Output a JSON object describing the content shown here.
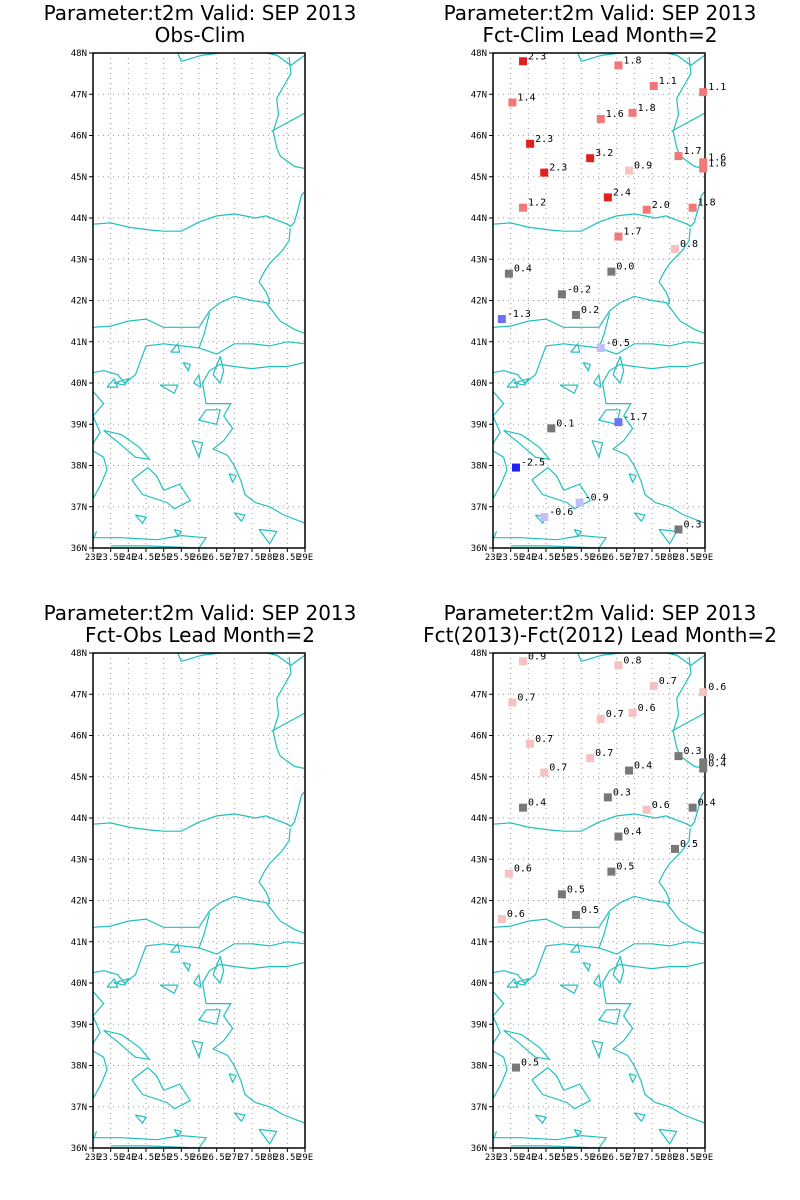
{
  "panels": [
    {
      "title1": "Parameter:t2m Valid: SEP 2013",
      "title2": "Obs-Clim",
      "points": []
    },
    {
      "title1": "Parameter:t2m Valid: SEP 2013",
      "title2": "Fct-Clim Lead Month=2",
      "points": [
        {
          "lon": 23.85,
          "lat": 47.8,
          "v": "2.3",
          "c": "#e02020"
        },
        {
          "lon": 26.55,
          "lat": 47.7,
          "v": "1.8",
          "c": "#f07878"
        },
        {
          "lon": 27.55,
          "lat": 47.2,
          "v": "1.1",
          "c": "#f07878"
        },
        {
          "lon": 28.95,
          "lat": 47.05,
          "v": "1.1",
          "c": "#f07878"
        },
        {
          "lon": 23.55,
          "lat": 46.8,
          "v": "1.4",
          "c": "#f07878"
        },
        {
          "lon": 26.05,
          "lat": 46.4,
          "v": "1.6",
          "c": "#f07878"
        },
        {
          "lon": 26.95,
          "lat": 46.55,
          "v": "1.8",
          "c": "#f07878"
        },
        {
          "lon": 24.05,
          "lat": 45.8,
          "v": "2.3",
          "c": "#e02020"
        },
        {
          "lon": 25.75,
          "lat": 45.45,
          "v": "3.2",
          "c": "#e02020"
        },
        {
          "lon": 28.25,
          "lat": 45.5,
          "v": "1.7",
          "c": "#f07878"
        },
        {
          "lon": 28.95,
          "lat": 45.35,
          "v": "1.6",
          "c": "#f07878"
        },
        {
          "lon": 28.95,
          "lat": 45.2,
          "v": "1.6",
          "c": "#f07878"
        },
        {
          "lon": 24.45,
          "lat": 45.1,
          "v": "2.3",
          "c": "#e02020"
        },
        {
          "lon": 26.85,
          "lat": 45.15,
          "v": "0.9",
          "c": "#f8c0c0"
        },
        {
          "lon": 26.25,
          "lat": 44.5,
          "v": "2.4",
          "c": "#e02020"
        },
        {
          "lon": 23.85,
          "lat": 44.25,
          "v": "1.2",
          "c": "#f07878"
        },
        {
          "lon": 27.35,
          "lat": 44.2,
          "v": "2.0",
          "c": "#f07878"
        },
        {
          "lon": 28.65,
          "lat": 44.25,
          "v": "1.8",
          "c": "#f07878"
        },
        {
          "lon": 26.55,
          "lat": 43.55,
          "v": "1.7",
          "c": "#f07878"
        },
        {
          "lon": 28.15,
          "lat": 43.25,
          "v": "0.8",
          "c": "#f8c0c0"
        },
        {
          "lon": 23.45,
          "lat": 42.65,
          "v": "0.4",
          "c": "#787878"
        },
        {
          "lon": 26.35,
          "lat": 42.7,
          "v": "0.0",
          "c": "#787878"
        },
        {
          "lon": 24.95,
          "lat": 42.15,
          "v": "-0.2",
          "c": "#787878"
        },
        {
          "lon": 25.35,
          "lat": 41.65,
          "v": "0.2",
          "c": "#787878"
        },
        {
          "lon": 23.25,
          "lat": 41.55,
          "v": "-1.3",
          "c": "#7070f0"
        },
        {
          "lon": 26.05,
          "lat": 40.85,
          "v": "-0.5",
          "c": "#c0c0f8"
        },
        {
          "lon": 26.55,
          "lat": 39.05,
          "v": "-1.7",
          "c": "#7070f0"
        },
        {
          "lon": 24.65,
          "lat": 38.9,
          "v": "0.1",
          "c": "#787878"
        },
        {
          "lon": 23.65,
          "lat": 37.95,
          "v": "-2.5",
          "c": "#2020f0"
        },
        {
          "lon": 25.45,
          "lat": 37.1,
          "v": "-0.9",
          "c": "#c0c0f8"
        },
        {
          "lon": 24.45,
          "lat": 36.75,
          "v": "-0.6",
          "c": "#c0c0f8"
        },
        {
          "lon": 28.25,
          "lat": 36.45,
          "v": "0.3",
          "c": "#787878"
        }
      ]
    },
    {
      "title1": "Parameter:t2m Valid: SEP 2013",
      "title2": "Fct-Obs Lead Month=2",
      "points": []
    },
    {
      "title1": "Parameter:t2m Valid: SEP 2013",
      "title2": "Fct(2013)-Fct(2012) Lead Month=2",
      "points": [
        {
          "lon": 23.85,
          "lat": 47.8,
          "v": "0.9",
          "c": "#f8c0c0"
        },
        {
          "lon": 26.55,
          "lat": 47.7,
          "v": "0.8",
          "c": "#f8c0c0"
        },
        {
          "lon": 27.55,
          "lat": 47.2,
          "v": "0.7",
          "c": "#f8c0c0"
        },
        {
          "lon": 28.95,
          "lat": 47.05,
          "v": "0.6",
          "c": "#f8c0c0"
        },
        {
          "lon": 23.55,
          "lat": 46.8,
          "v": "0.7",
          "c": "#f8c0c0"
        },
        {
          "lon": 26.05,
          "lat": 46.4,
          "v": "0.7",
          "c": "#f8c0c0"
        },
        {
          "lon": 26.95,
          "lat": 46.55,
          "v": "0.6",
          "c": "#f8c0c0"
        },
        {
          "lon": 24.05,
          "lat": 45.8,
          "v": "0.7",
          "c": "#f8c0c0"
        },
        {
          "lon": 25.75,
          "lat": 45.45,
          "v": "0.7",
          "c": "#f8c0c0"
        },
        {
          "lon": 28.25,
          "lat": 45.5,
          "v": "0.3",
          "c": "#787878"
        },
        {
          "lon": 28.95,
          "lat": 45.35,
          "v": "0.4",
          "c": "#787878"
        },
        {
          "lon": 28.95,
          "lat": 45.2,
          "v": "0.4",
          "c": "#787878"
        },
        {
          "lon": 24.45,
          "lat": 45.1,
          "v": "0.7",
          "c": "#f8c0c0"
        },
        {
          "lon": 26.85,
          "lat": 45.15,
          "v": "0.4",
          "c": "#787878"
        },
        {
          "lon": 26.25,
          "lat": 44.5,
          "v": "0.3",
          "c": "#787878"
        },
        {
          "lon": 23.85,
          "lat": 44.25,
          "v": "0.4",
          "c": "#787878"
        },
        {
          "lon": 27.35,
          "lat": 44.2,
          "v": "0.6",
          "c": "#f8c0c0"
        },
        {
          "lon": 28.65,
          "lat": 44.25,
          "v": "0.4",
          "c": "#787878"
        },
        {
          "lon": 26.55,
          "lat": 43.55,
          "v": "0.4",
          "c": "#787878"
        },
        {
          "lon": 28.15,
          "lat": 43.25,
          "v": "0.5",
          "c": "#787878"
        },
        {
          "lon": 23.45,
          "lat": 42.65,
          "v": "0.6",
          "c": "#f8c0c0"
        },
        {
          "lon": 26.35,
          "lat": 42.7,
          "v": "0.5",
          "c": "#787878"
        },
        {
          "lon": 24.95,
          "lat": 42.15,
          "v": "0.5",
          "c": "#787878"
        },
        {
          "lon": 25.35,
          "lat": 41.65,
          "v": "0.5",
          "c": "#787878"
        },
        {
          "lon": 23.25,
          "lat": 41.55,
          "v": "0.6",
          "c": "#f8c0c0"
        },
        {
          "lon": 23.65,
          "lat": 37.95,
          "v": "0.5",
          "c": "#787878"
        }
      ]
    }
  ],
  "ylabels": [
    "48N",
    "47N",
    "46N",
    "45N",
    "44N",
    "43N",
    "42N",
    "41N",
    "40N",
    "39N",
    "38N",
    "37N",
    "36N"
  ],
  "xlabels": [
    "23E",
    "23.5E",
    "24E",
    "24.5E",
    "25E",
    "25.5E",
    "26E",
    "26.5E",
    "27E",
    "27.5E",
    "28E",
    "28.5E",
    "29E"
  ],
  "colors": {
    "coast": "#20c0c0",
    "frame": "#000000",
    "grid": "#999999"
  }
}
